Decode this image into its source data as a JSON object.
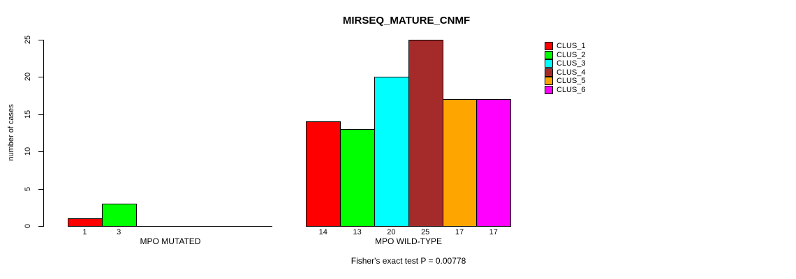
{
  "chart_data": {
    "type": "bar",
    "title": "MIRSEQ_MATURE_CNMF",
    "ylabel": "number of cases",
    "xlabel": "",
    "ylim": [
      0,
      25
    ],
    "yticks": [
      0,
      5,
      10,
      15,
      20,
      25
    ],
    "ytick_labels": [
      "0",
      "5",
      "10",
      "15",
      "20",
      "25"
    ],
    "grid": false,
    "legend_position": "top-right",
    "groups": [
      {
        "label": "MPO MUTATED",
        "categories": [
          "CLUS_1",
          "CLUS_2"
        ],
        "values": [
          1,
          3
        ],
        "bar_labels": [
          "1",
          "3"
        ],
        "colors": [
          "#FF0000",
          "#00FF00"
        ],
        "slots": 6
      },
      {
        "label": "MPO WILD-TYPE",
        "categories": [
          "CLUS_1",
          "CLUS_2",
          "CLUS_3",
          "CLUS_4",
          "CLUS_5",
          "CLUS_6"
        ],
        "values": [
          14,
          13,
          20,
          25,
          17,
          17
        ],
        "bar_labels": [
          "14",
          "13",
          "20",
          "25",
          "17",
          "17"
        ],
        "colors": [
          "#FF0000",
          "#00FF00",
          "#00FFFF",
          "#A52A2A",
          "#FFA500",
          "#FF00FF"
        ],
        "slots": 6
      }
    ],
    "legend": [
      {
        "label": "CLUS_1",
        "color": "#FF0000"
      },
      {
        "label": "CLUS_2",
        "color": "#00FF00"
      },
      {
        "label": "CLUS_3",
        "color": "#00FFFF"
      },
      {
        "label": "CLUS_4",
        "color": "#A52A2A"
      },
      {
        "label": "CLUS_5",
        "color": "#FFA500"
      },
      {
        "label": "CLUS_6",
        "color": "#FF00FF"
      }
    ],
    "annotation": "Fisher's exact test P = 0.00778"
  }
}
